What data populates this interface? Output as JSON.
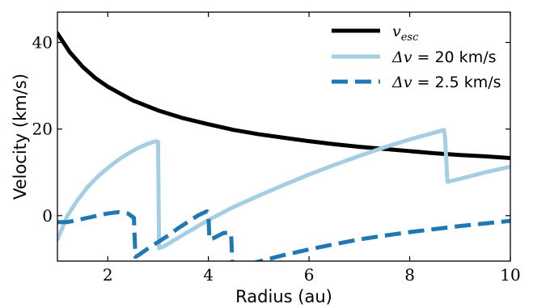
{
  "chart_data": {
    "type": "line",
    "xlabel": "Radius (au)",
    "ylabel": "Velocity (km/s)",
    "xlim": [
      1,
      10
    ],
    "ylim": [
      -10.5,
      47
    ],
    "xticks": [
      2,
      4,
      6,
      8,
      10
    ],
    "yticks": [
      0,
      20,
      40
    ],
    "grid": false,
    "legend_position": "top-right",
    "series": [
      {
        "name": "v_esc",
        "legend_main": "v",
        "legend_sub": "esc",
        "color": "#000000",
        "style": "solid",
        "x": [
          1.0,
          1.25,
          1.5,
          1.75,
          2.0,
          2.5,
          3.0,
          3.5,
          4.0,
          4.5,
          5.0,
          5.5,
          6.0,
          6.5,
          7.0,
          7.5,
          8.0,
          8.5,
          9.0,
          9.5,
          10.0
        ],
        "y": [
          42.1,
          37.7,
          34.4,
          31.8,
          29.8,
          26.6,
          24.3,
          22.5,
          21.1,
          19.8,
          18.8,
          18.0,
          17.2,
          16.5,
          15.9,
          15.4,
          14.9,
          14.4,
          14.0,
          13.7,
          13.3
        ]
      },
      {
        "name": "Δv = 20 km/s",
        "legend_main": "Δv = ",
        "legend_sub": "20 km/s",
        "color": "#a6cee3",
        "style": "solid",
        "x": [
          1.0,
          1.1,
          1.2,
          1.4,
          1.6,
          1.8,
          2.0,
          2.2,
          2.4,
          2.6,
          2.8,
          2.96,
          3.0,
          3.02,
          3.1,
          3.5,
          4.0,
          4.5,
          5.0,
          5.5,
          6.0,
          6.5,
          7.0,
          7.5,
          8.0,
          8.5,
          8.68,
          8.7,
          8.75,
          9.0,
          9.5,
          10.0
        ],
        "y": [
          -5.5,
          -2.8,
          0.0,
          3.6,
          6.6,
          9.0,
          11.0,
          12.8,
          14.3,
          15.6,
          16.6,
          17.2,
          17.0,
          -7.5,
          -7.2,
          -4.4,
          -1.0,
          2.0,
          4.6,
          7.1,
          9.5,
          11.7,
          13.8,
          15.8,
          17.6,
          19.2,
          19.8,
          18.5,
          7.8,
          8.5,
          10.0,
          11.3
        ]
      },
      {
        "name": "Δv = 2.5 km/s",
        "legend_main": "Δv = ",
        "legend_sub": "2.5 km/s",
        "color": "#1f78b4",
        "style": "dashed",
        "x": [
          1.0,
          1.2,
          1.4,
          1.6,
          1.8,
          2.0,
          2.2,
          2.4,
          2.52,
          2.55,
          2.6,
          2.8,
          3.0,
          3.2,
          3.4,
          3.6,
          3.8,
          3.97,
          4.0,
          4.02,
          4.1,
          4.3,
          4.45,
          4.48,
          4.5,
          4.6,
          5.0,
          5.5,
          6.0,
          6.5,
          7.0,
          7.5,
          8.0,
          8.5,
          9.0,
          9.5,
          10.0
        ],
        "y": [
          -1.5,
          -1.5,
          -1.0,
          -0.5,
          0.0,
          0.5,
          0.8,
          0.5,
          -0.5,
          -9.5,
          -9.2,
          -7.6,
          -6.1,
          -4.6,
          -2.9,
          -1.4,
          0.1,
          1.0,
          0.5,
          -5.5,
          -5.2,
          -4.0,
          -4.0,
          -12.0,
          -12.2,
          -11.8,
          -10.6,
          -9.1,
          -7.8,
          -6.6,
          -5.5,
          -4.6,
          -3.8,
          -3.1,
          -2.4,
          -1.8,
          -1.2
        ]
      }
    ]
  }
}
